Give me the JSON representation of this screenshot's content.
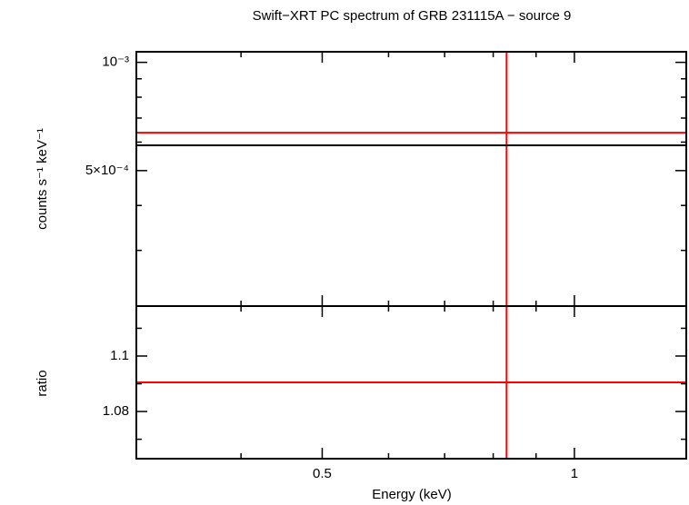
{
  "chart_data": [
    {
      "type": "spectrum",
      "title": "Swift−XRT PC spectrum of GRB 231115A − source 9",
      "ylabel": "counts s⁻¹ keV⁻¹",
      "log_x": true,
      "log_y": true,
      "xlim": [
        0.3,
        1.36
      ],
      "xticks": [
        0.5,
        1
      ],
      "xminorticks": [
        0.4,
        0.6,
        0.7,
        0.8,
        0.9
      ],
      "ylim": [
        0.00021,
        0.00107
      ],
      "yticks": [
        {
          "value": 0.001,
          "label": "10⁻³"
        },
        {
          "value": 0.0005,
          "label": "5×10⁻⁴"
        }
      ],
      "yminorticks": [
        0.0003,
        0.0004,
        0.0006,
        0.0007,
        0.0008,
        0.0009
      ],
      "x": [
        0.83
      ],
      "series": [
        {
          "color": "#ff0000",
          "style": "cross",
          "values": [
            0.000637
          ]
        },
        {
          "color": "#000000",
          "style": "hline",
          "values": [
            0.000588
          ]
        }
      ]
    },
    {
      "type": "ratio",
      "xlabel": "Energy (keV)",
      "ylabel": "ratio",
      "log_x": true,
      "log_y": false,
      "xlim": [
        0.3,
        1.36
      ],
      "xticks": [
        0.5,
        1
      ],
      "xminorticks": [
        0.4,
        0.6,
        0.7,
        0.8,
        0.9
      ],
      "ylim": [
        1.063,
        1.118
      ],
      "yticks": [
        1.08,
        1.1
      ],
      "yminorticks": [
        1.07,
        1.09,
        1.11
      ],
      "x": [
        0.83
      ],
      "series": [
        {
          "color": "#ff0000",
          "style": "cross",
          "values": [
            1.0905
          ]
        }
      ]
    }
  ]
}
